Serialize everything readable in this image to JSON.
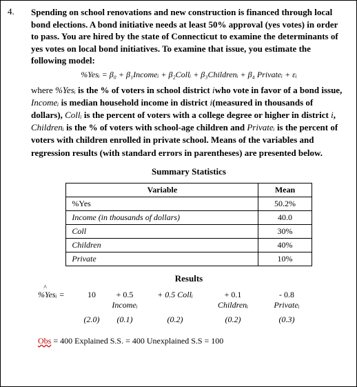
{
  "number": "4.",
  "question": "Spending on school renovations and new construction is financed through local bond elections.  A bond initiative needs at least 50% approval (yes votes) in order to pass.  You are hired by the state of Connecticut to examine the determinants of yes votes on local bond initiatives.  To examine that issue, you estimate the following model:",
  "equation": "%Yesᵢ = β₀ + β₁Incomeᵢ + β₂Collᵢ + β₃Childrenᵢ + β₄ Privateᵢ + εᵢ",
  "desc_parts": {
    "p1": "where  ",
    "yesVar": "%Yesᵢ",
    "p2": " is the % of voters in school district ",
    "i1": "i",
    "p3": "who vote in favor of a bond issue, ",
    "incVar": "Incomeᵢ",
    "p4": " is median household income in district ",
    "i2": "i",
    "p5": "(measured in thousands of dollars), ",
    "collVar": "Collᵢ",
    "p6": " is the percent of voters with a college degree or higher in district ",
    "i3": "i",
    "p7": ", ",
    "chVar": "Childrenᵢ",
    "p8": " is the % of voters with school-age children and ",
    "prVar": "Privateᵢ",
    "p9": " is the percent of voters with children enrolled in private school.  Means of the variables and regression results (with standard errors in parentheses) are presented below."
  },
  "summary_title": "Summary Statistics",
  "results_title": "Results",
  "table": {
    "h1": "Variable",
    "h2": "Mean",
    "rows": [
      {
        "v": "%Yes",
        "m": "50.2%"
      },
      {
        "v": "Income  (in thousands of dollars)",
        "m": "40.0",
        "italic": true
      },
      {
        "v": "Coll",
        "m": "30%",
        "italic": true
      },
      {
        "v": "Children",
        "m": "40%",
        "italic": true
      },
      {
        "v": "Private",
        "m": "10%",
        "italic": true
      }
    ]
  },
  "results": {
    "lhs": "%Yesᵢ =",
    "intercept": "10",
    "b1": "+ 0.5",
    "b2": "+ 0.5 Collᵢ",
    "b3": "+ 0.1",
    "b4": "- 0.8",
    "v1": "Incomeᵢ",
    "v3": "Childrenᵢ",
    "v4": "Privateᵢ",
    "se0": "(2.0)",
    "se1": "(0.1)",
    "se2": "(0.2)",
    "se3": "(0.2)",
    "se4": "(0.3)"
  },
  "obs": {
    "label": "Obs",
    "obsVal": " = 400    Explained S.S. = 400    Unexplained  S.S = 100"
  }
}
